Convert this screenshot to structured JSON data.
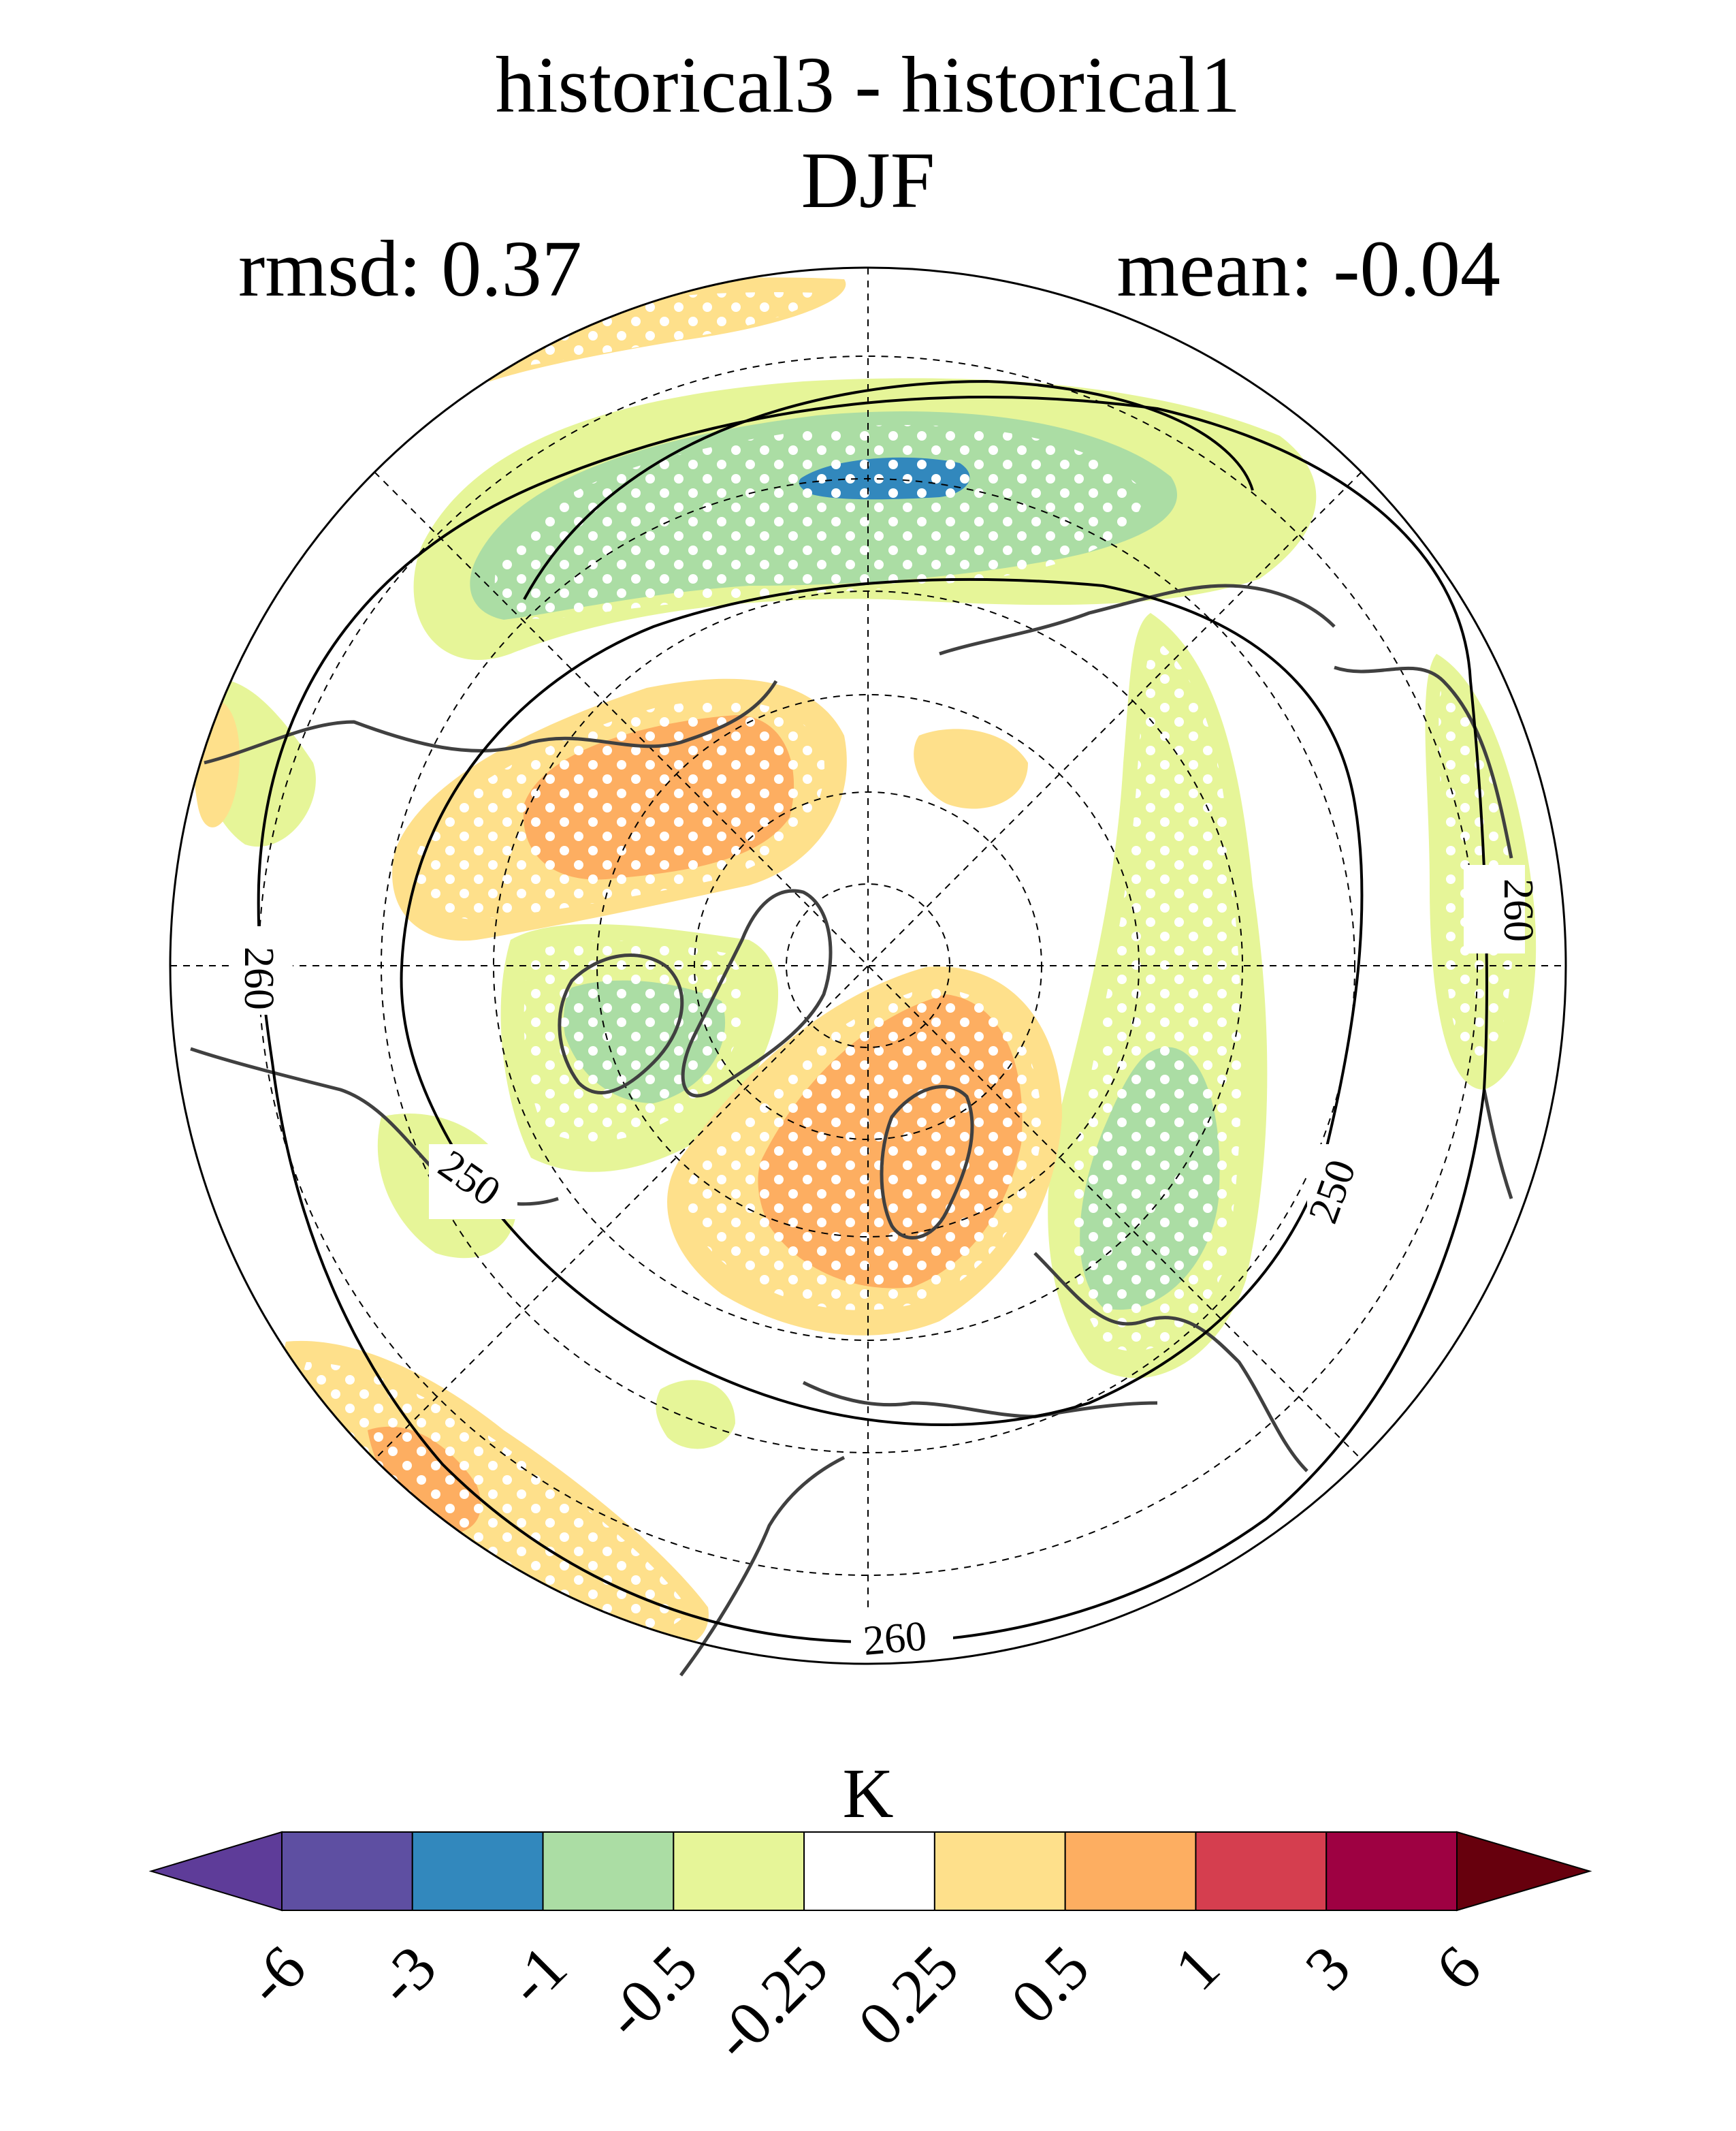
{
  "title": {
    "line1": "historical3 - historical1",
    "line2": "DJF"
  },
  "stats": {
    "rmsd": "rmsd: 0.37",
    "mean": "mean: -0.04"
  },
  "projection": "north-polar-stereographic",
  "contours": {
    "labels": [
      "260",
      "260",
      "250",
      "250",
      "260"
    ]
  },
  "colorbar": {
    "unit": "K",
    "tick_labels": [
      "-6",
      "-3",
      "-1",
      "-0.5",
      "-0.25",
      "0.25",
      "0.5",
      "1",
      "3",
      "6"
    ],
    "colors": [
      "#5e3c99",
      "#5e4fa2",
      "#3288bd",
      "#abdda4",
      "#e6f598",
      "#ffffff",
      "#fee08b",
      "#fdae61",
      "#d53e4f",
      "#9e0142",
      "#67000d"
    ]
  },
  "legend_colors": {
    "coastline": "#404040",
    "stipple": "#ffffff"
  }
}
